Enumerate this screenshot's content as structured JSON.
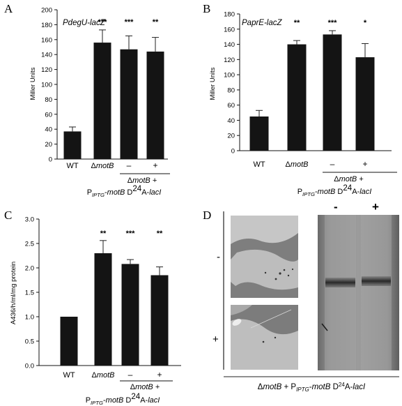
{
  "panels": {
    "A": {
      "letter": "A",
      "gene_label": "PdegU-lacZ"
    },
    "B": {
      "letter": "B",
      "gene_label": "PaprE-lacZ"
    },
    "C": {
      "letter": "C"
    },
    "D": {
      "letter": "D",
      "photo_labels": [
        "-",
        "+"
      ],
      "gel_labels": [
        "-",
        "+"
      ],
      "caption": "ΔmotB + PIPTG-motB D24A-lacI"
    }
  },
  "xaxis_text": {
    "wt": "WT",
    "delta": "ΔmotB",
    "minus": "–",
    "plus": "+",
    "group_line1": "ΔmotB +",
    "group_line2": "PIPTG-motB D24A-lacI"
  },
  "chart_data": [
    {
      "type": "bar",
      "panel": "A",
      "categories": [
        "WT",
        "ΔmotB",
        "–",
        "+"
      ],
      "values": [
        37,
        156,
        147,
        144
      ],
      "errors": [
        6,
        17,
        18,
        19
      ],
      "significance": [
        "",
        "***",
        "***",
        "**"
      ],
      "ylabel": "Miller Units",
      "ylim": [
        0,
        200
      ],
      "yticks": [
        0,
        20,
        40,
        60,
        80,
        100,
        120,
        140,
        160,
        180,
        200
      ],
      "tick_labels": [
        "0",
        "20",
        "40",
        "60",
        "80",
        "100",
        "120",
        "140",
        "160",
        "180",
        "200"
      ],
      "bar_color": "#141414"
    },
    {
      "type": "bar",
      "panel": "B",
      "categories": [
        "WT",
        "ΔmotB",
        "–",
        "+"
      ],
      "values": [
        45,
        140,
        153,
        123
      ],
      "errors": [
        8,
        5,
        5,
        18
      ],
      "significance": [
        "",
        "**",
        "***",
        "*"
      ],
      "ylabel": "Miller Units",
      "ylim": [
        0,
        180
      ],
      "yticks": [
        0,
        20,
        40,
        60,
        80,
        100,
        120,
        140,
        160,
        180
      ],
      "tick_labels": [
        "0",
        "20",
        "40",
        "60",
        "80",
        "100",
        "120",
        "140",
        "160",
        "180"
      ],
      "bar_color": "#141414"
    },
    {
      "type": "bar",
      "panel": "C",
      "categories": [
        "WT",
        "ΔmotB",
        "–",
        "+"
      ],
      "values": [
        1.0,
        2.3,
        2.08,
        1.85
      ],
      "errors": [
        0,
        0.26,
        0.09,
        0.17
      ],
      "significance": [
        "",
        "**",
        "***",
        "**"
      ],
      "ylabel": "A436/h/ml/mg protein",
      "ylim": [
        0,
        3.0
      ],
      "yticks": [
        0,
        0.5,
        1.0,
        1.5,
        2.0,
        2.5,
        3.0
      ],
      "tick_labels": [
        "0.0",
        "0.5",
        "1.0",
        "1.5",
        "2.0",
        "2.5",
        "3.0"
      ],
      "bar_color": "#141414"
    }
  ]
}
